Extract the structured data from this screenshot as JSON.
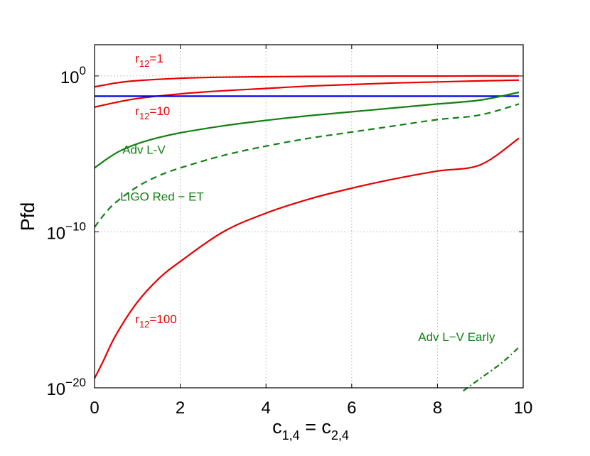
{
  "chart_data": {
    "type": "line",
    "title": "",
    "xlabel": "c_{1,4} = c_{2,4}",
    "xlabel_parts": {
      "c1": "c",
      "s1": "1,4",
      "eq": " = ",
      "c2": "c",
      "s2": "2,4"
    },
    "ylabel": "Pfd",
    "x_scale": "linear",
    "y_scale": "log",
    "xlim": [
      0,
      10
    ],
    "ylim_exponent": [
      -20,
      2
    ],
    "x_ticks": [
      0,
      2,
      4,
      6,
      8,
      10
    ],
    "x_tick_labels": [
      "0",
      "2",
      "4",
      "6",
      "8",
      "10"
    ],
    "y_ticks_exponent": [
      0,
      -10,
      -20
    ],
    "y_tick_labels": [
      {
        "base": "10",
        "exp": "0"
      },
      {
        "base": "10",
        "exp": "−10"
      },
      {
        "base": "10",
        "exp": "−20"
      }
    ],
    "grid": true,
    "series": [
      {
        "name": "r12=1",
        "color": "#e60000",
        "dash": "solid",
        "x": [
          0,
          0.5,
          1,
          2,
          3,
          4,
          5,
          6,
          7,
          8,
          9,
          9.9
        ],
        "log10_y": [
          -0.7,
          -0.45,
          -0.3,
          -0.15,
          -0.08,
          -0.05,
          -0.03,
          -0.02,
          -0.01,
          -0.01,
          0,
          0
        ]
      },
      {
        "name": "r12=10",
        "color": "#e60000",
        "dash": "solid",
        "x": [
          0,
          0.5,
          1,
          2,
          3,
          4,
          5,
          6,
          7,
          8,
          9,
          9.9
        ],
        "log10_y": [
          -2.0,
          -1.7,
          -1.45,
          -1.15,
          -0.95,
          -0.8,
          -0.65,
          -0.55,
          -0.45,
          -0.38,
          -0.32,
          -0.27
        ]
      },
      {
        "name": "r12=100",
        "color": "#e60000",
        "dash": "solid",
        "x": [
          0,
          0.2,
          0.5,
          1,
          1.5,
          2,
          3,
          4,
          5,
          6,
          7,
          8,
          9,
          9.9
        ],
        "log10_y": [
          -19.4,
          -18.3,
          -16.6,
          -14.5,
          -13.0,
          -11.9,
          -10.0,
          -8.8,
          -7.9,
          -7.2,
          -6.6,
          -6.1,
          -5.7,
          -4.0
        ]
      },
      {
        "name": "blue reference",
        "color": "#0000e6",
        "dash": "solid",
        "x": [
          0,
          9.9
        ],
        "log10_y": [
          -1.3,
          -1.3
        ]
      },
      {
        "name": "Adv L-V",
        "color": "#118011",
        "dash": "solid",
        "x": [
          0,
          0.3,
          0.6,
          1,
          1.5,
          2,
          3,
          4,
          5,
          6,
          7,
          8,
          9,
          9.9
        ],
        "log10_y": [
          -5.9,
          -5.3,
          -4.8,
          -4.35,
          -3.95,
          -3.65,
          -3.2,
          -2.85,
          -2.55,
          -2.3,
          -2.05,
          -1.8,
          -1.55,
          -1.05
        ]
      },
      {
        "name": "LIGO Red - ET",
        "color": "#118011",
        "dash": "dashed",
        "x": [
          0,
          0.25,
          0.5,
          1,
          1.5,
          2,
          3,
          4,
          5,
          6,
          7,
          8,
          9,
          9.9
        ],
        "log10_y": [
          -9.7,
          -8.8,
          -8.1,
          -7.1,
          -6.4,
          -5.9,
          -5.1,
          -4.5,
          -4.0,
          -3.6,
          -3.2,
          -2.8,
          -2.5,
          -1.8
        ]
      },
      {
        "name": "Adv L-V Early",
        "color": "#118011",
        "dash": "dashdot",
        "x": [
          8.6,
          9,
          9.5,
          9.9
        ],
        "log10_y": [
          -20.2,
          -19.4,
          -18.4,
          -17.4
        ]
      }
    ],
    "annotations": [
      {
        "id": "r1",
        "color": "#e60000",
        "base": "r",
        "sub": "12",
        "tail": "=1",
        "at_x": 0.95,
        "at_log10_y": 0.85
      },
      {
        "id": "r10",
        "color": "#e60000",
        "base": "r",
        "sub": "12",
        "tail": "=10",
        "at_x": 0.95,
        "at_log10_y": -2.5
      },
      {
        "id": "r100",
        "color": "#e60000",
        "base": "r",
        "sub": "12",
        "tail": "=100",
        "at_x": 0.95,
        "at_log10_y": -15.85
      },
      {
        "id": "advlv",
        "color": "#118011",
        "text": "Adv L-V",
        "at_x": 0.65,
        "at_log10_y": -5.0
      },
      {
        "id": "ligo",
        "color": "#118011",
        "text": "LIGO Red − ET",
        "at_x": 0.6,
        "at_log10_y": -8.0
      },
      {
        "id": "early",
        "color": "#118011",
        "text": "Adv L−V Early",
        "at_x": 7.55,
        "at_log10_y": -17.0
      }
    ]
  }
}
